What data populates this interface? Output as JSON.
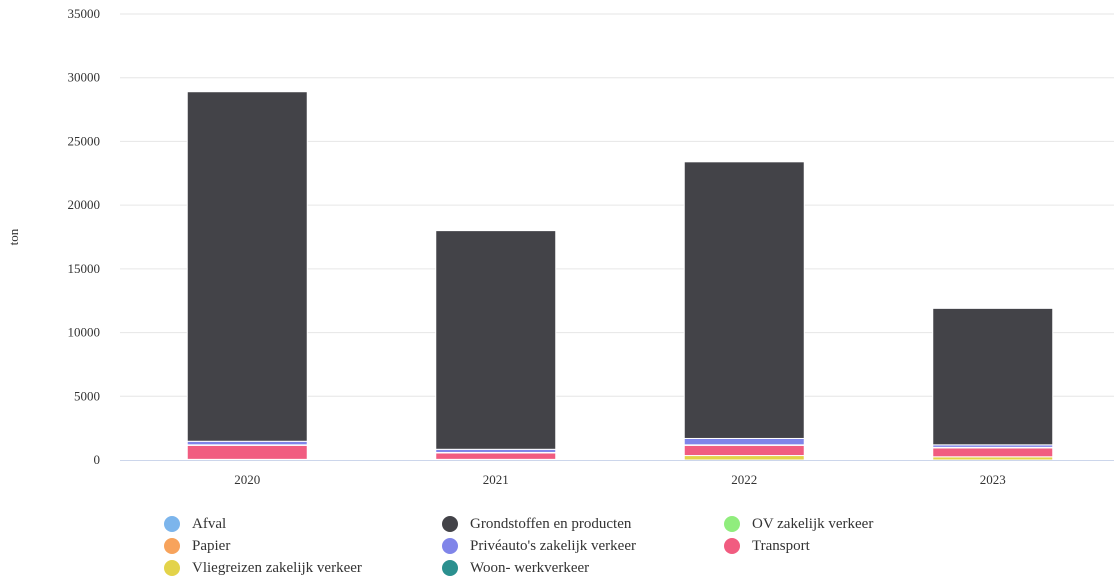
{
  "chart_data": {
    "type": "bar",
    "stacked": true,
    "categories": [
      "2020",
      "2021",
      "2022",
      "2023"
    ],
    "ylabel": "ton",
    "ylim": [
      0,
      35000
    ],
    "yticks": [
      0,
      5000,
      10000,
      15000,
      20000,
      25000,
      30000,
      35000
    ],
    "grid": true,
    "legend_position": "bottom",
    "series": [
      {
        "name": "Vliegreizen zakelijk verkeer",
        "color": "#e3d34a",
        "values": [
          50,
          50,
          350,
          250
        ]
      },
      {
        "name": "Transport",
        "color": "#f15c80",
        "values": [
          1100,
          500,
          800,
          700
        ]
      },
      {
        "name": "Woon- werkverkeer",
        "color": "#2b908f",
        "values": [
          0,
          0,
          0,
          0
        ]
      },
      {
        "name": "Afval",
        "color": "#7cb5ec",
        "values": [
          20,
          20,
          20,
          20
        ]
      },
      {
        "name": "Papier",
        "color": "#f7a35c",
        "values": [
          10,
          10,
          10,
          10
        ]
      },
      {
        "name": "OV zakelijk verkeer",
        "color": "#90ed7d",
        "values": [
          10,
          10,
          10,
          10
        ]
      },
      {
        "name": "Privéauto's zakelijk verkeer",
        "color": "#8085e9",
        "values": [
          280,
          250,
          500,
          200
        ]
      },
      {
        "name": "Grondstoffen en producten",
        "color": "#434348",
        "values": [
          27430,
          17160,
          21710,
          10710
        ]
      }
    ]
  },
  "legend": [
    {
      "label": "Afval",
      "color": "#7cb5ec"
    },
    {
      "label": "Grondstoffen en producten",
      "color": "#434348"
    },
    {
      "label": "OV zakelijk verkeer",
      "color": "#90ed7d"
    },
    {
      "label": "Papier",
      "color": "#f7a35c"
    },
    {
      "label": "Privéauto's zakelijk verkeer",
      "color": "#8085e9"
    },
    {
      "label": "Transport",
      "color": "#f15c80"
    },
    {
      "label": "Vliegreizen zakelijk verkeer",
      "color": "#e3d34a"
    },
    {
      "label": "Woon- werkverkeer",
      "color": "#2b908f"
    }
  ]
}
